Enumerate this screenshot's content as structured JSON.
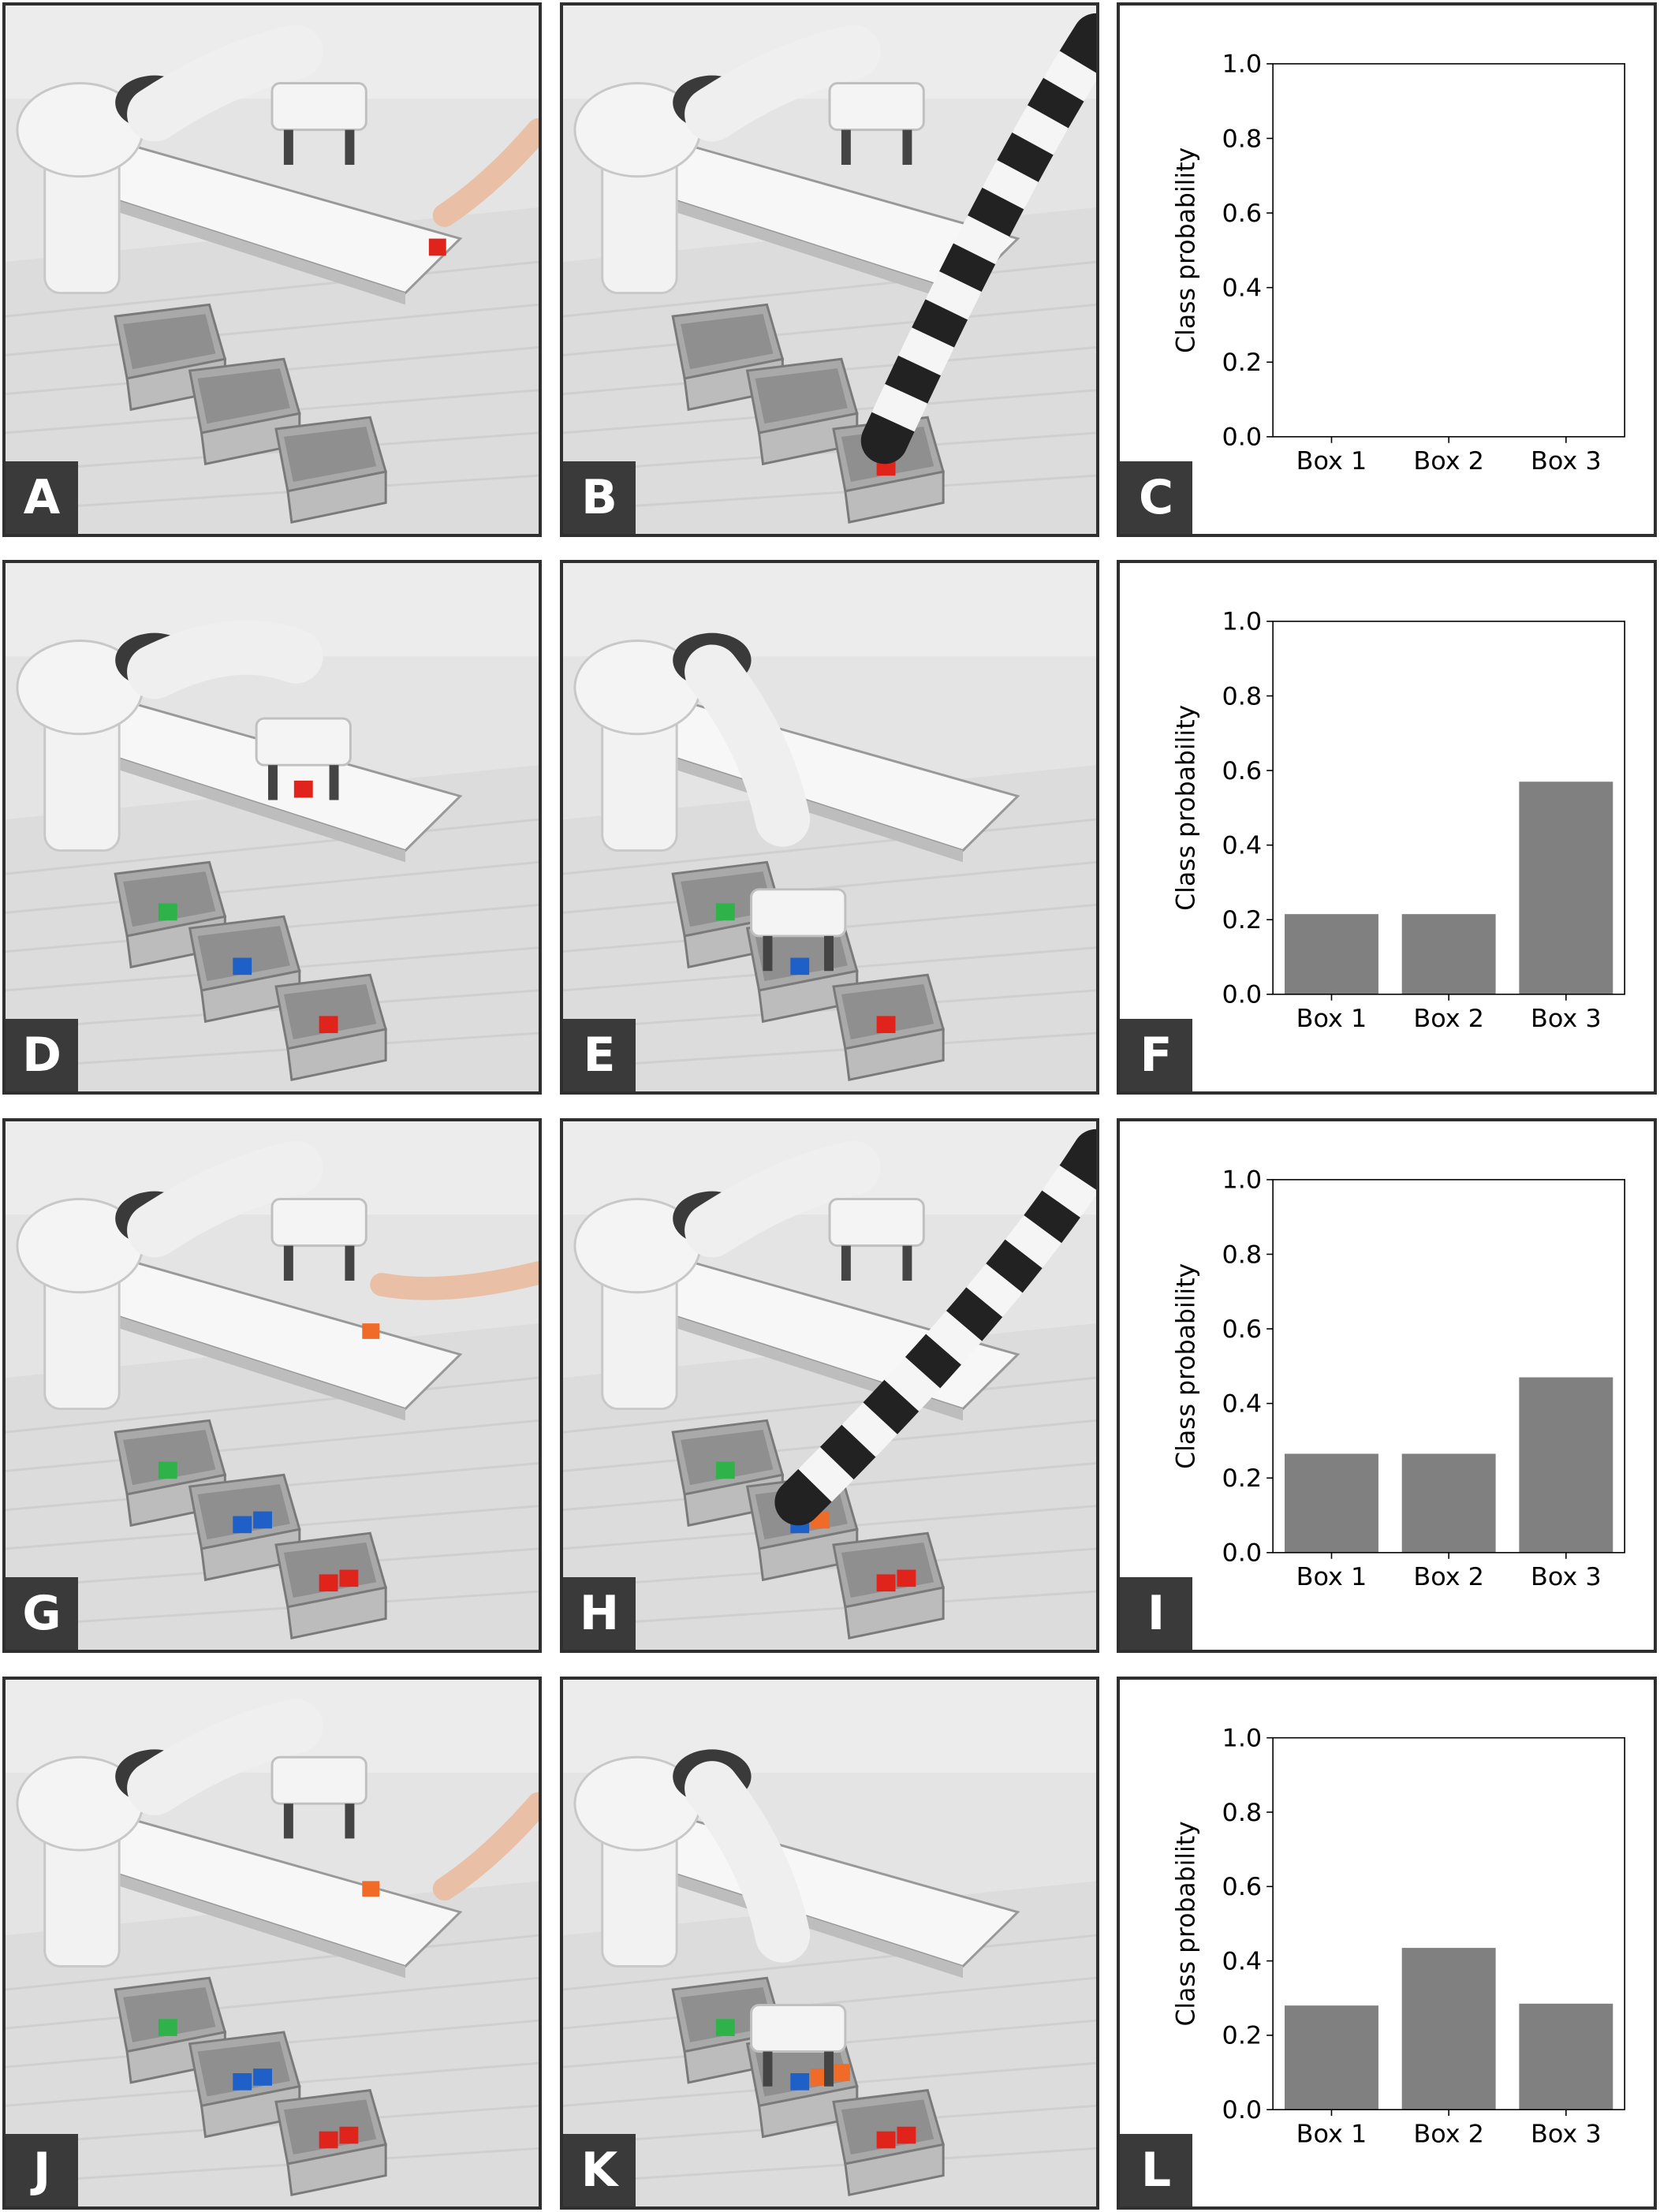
{
  "panels": [
    {
      "id": "A",
      "label": "A",
      "kind": "photo",
      "scene": {
        "hand": "table",
        "cube": "table-red",
        "robot": "home",
        "boxes": {
          "b1": [],
          "b2": [],
          "b3": []
        }
      }
    },
    {
      "id": "B",
      "label": "B",
      "kind": "photo",
      "scene": {
        "hand": "box3",
        "cube": "",
        "robot": "home",
        "boxes": {
          "b1": [],
          "b2": [],
          "b3": [
            "red"
          ]
        }
      }
    },
    {
      "id": "C",
      "label": "C",
      "kind": "chart",
      "chart_index": 0
    },
    {
      "id": "D",
      "label": "D",
      "kind": "photo",
      "scene": {
        "hand": "",
        "cube": "gripper-red",
        "robot": "pick",
        "boxes": {
          "b1": [
            "green"
          ],
          "b2": [
            "blue"
          ],
          "b3": [
            "red"
          ]
        }
      }
    },
    {
      "id": "E",
      "label": "E",
      "kind": "photo",
      "scene": {
        "hand": "",
        "cube": "",
        "robot": "place",
        "boxes": {
          "b1": [
            "green"
          ],
          "b2": [
            "blue"
          ],
          "b3": [
            "red"
          ]
        }
      }
    },
    {
      "id": "F",
      "label": "F",
      "kind": "chart",
      "chart_index": 1
    },
    {
      "id": "G",
      "label": "G",
      "kind": "photo",
      "scene": {
        "hand": "raised",
        "cube": "table-orange",
        "robot": "home",
        "boxes": {
          "b1": [
            "green"
          ],
          "b2": [
            "blue",
            "blue"
          ],
          "b3": [
            "red",
            "red"
          ]
        }
      }
    },
    {
      "id": "H",
      "label": "H",
      "kind": "photo",
      "scene": {
        "hand": "box2",
        "cube": "",
        "robot": "home",
        "boxes": {
          "b1": [
            "green"
          ],
          "b2": [
            "blue",
            "orange"
          ],
          "b3": [
            "red",
            "red"
          ]
        }
      }
    },
    {
      "id": "I",
      "label": "I",
      "kind": "chart",
      "chart_index": 2
    },
    {
      "id": "J",
      "label": "J",
      "kind": "photo",
      "scene": {
        "hand": "table",
        "cube": "table-orange",
        "robot": "home",
        "boxes": {
          "b1": [
            "green"
          ],
          "b2": [
            "blue",
            "blue"
          ],
          "b3": [
            "red",
            "red"
          ]
        }
      }
    },
    {
      "id": "K",
      "label": "K",
      "kind": "photo",
      "scene": {
        "hand": "",
        "cube": "",
        "robot": "place2",
        "boxes": {
          "b1": [
            "green"
          ],
          "b2": [
            "blue",
            "orange",
            "orange"
          ],
          "b3": [
            "red",
            "red"
          ]
        }
      }
    },
    {
      "id": "L",
      "label": "L",
      "kind": "chart",
      "chart_index": 3
    }
  ],
  "colors": {
    "bar": "#808080",
    "red_cube": "#e0241c",
    "blue_cube": "#1f5fc8",
    "green_cube": "#2fb24a",
    "orange_cube": "#f06a28"
  },
  "chart_data": [
    {
      "type": "bar",
      "categories": [
        "Box 1",
        "Box 2",
        "Box 3"
      ],
      "values": [
        0,
        0,
        0
      ],
      "ylabel": "Class probability",
      "ylim": [
        0.0,
        1.0
      ],
      "yticks": [
        "0.0",
        "0.2",
        "0.4",
        "0.6",
        "0.8",
        "1.0"
      ],
      "grid": false
    },
    {
      "type": "bar",
      "categories": [
        "Box 1",
        "Box 2",
        "Box 3"
      ],
      "values": [
        0.215,
        0.215,
        0.57
      ],
      "ylabel": "Class probability",
      "ylim": [
        0.0,
        1.0
      ],
      "yticks": [
        "0.0",
        "0.2",
        "0.4",
        "0.6",
        "0.8",
        "1.0"
      ],
      "grid": false
    },
    {
      "type": "bar",
      "categories": [
        "Box 1",
        "Box 2",
        "Box 3"
      ],
      "values": [
        0.265,
        0.265,
        0.47
      ],
      "ylabel": "Class probability",
      "ylim": [
        0.0,
        1.0
      ],
      "yticks": [
        "0.0",
        "0.2",
        "0.4",
        "0.6",
        "0.8",
        "1.0"
      ],
      "grid": false
    },
    {
      "type": "bar",
      "categories": [
        "Box 1",
        "Box 2",
        "Box 3"
      ],
      "values": [
        0.28,
        0.435,
        0.285
      ],
      "ylabel": "Class probability",
      "ylim": [
        0.0,
        1.0
      ],
      "yticks": [
        "0.0",
        "0.2",
        "0.4",
        "0.6",
        "0.8",
        "1.0"
      ],
      "grid": false
    }
  ]
}
